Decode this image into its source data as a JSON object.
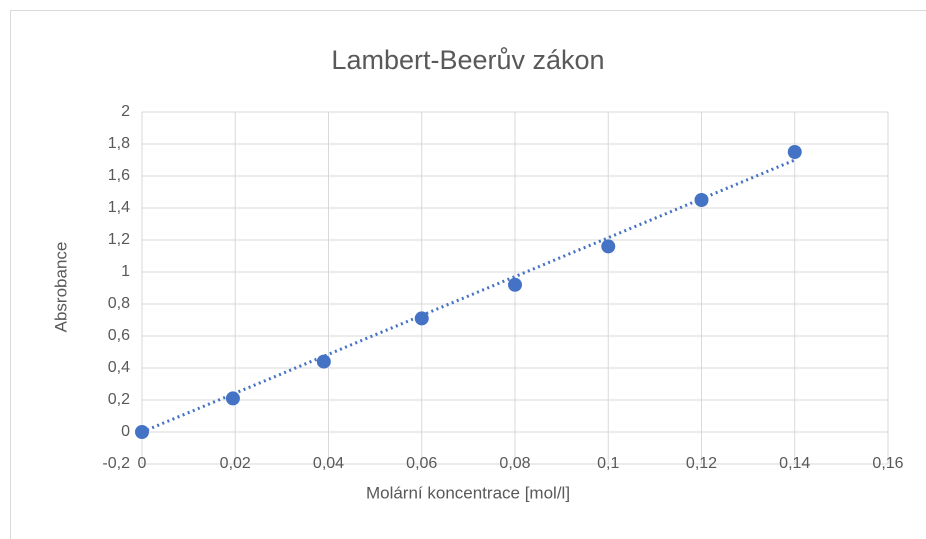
{
  "chart_data": {
    "type": "scatter",
    "title": "Lambert-Beerův zákon",
    "x_label": "Molární koncentrace [mol/l]",
    "y_label": "Absrobance",
    "series": [
      {
        "color": "#4472c4",
        "x": [
          0,
          0.0195,
          0.039,
          0.06,
          0.08,
          0.1,
          0.12,
          0.14
        ],
        "values": [
          0,
          0.21,
          0.44,
          0.71,
          0.92,
          1.16,
          1.45,
          1.75
        ]
      }
    ],
    "trendline": {
      "x": [
        0,
        0.14
      ],
      "values": [
        0,
        1.7
      ],
      "color": "#4472c4"
    },
    "xlim": [
      0,
      0.16
    ],
    "xticks": [
      0,
      {
        "value": 0.02,
        "label": "0,02"
      },
      {
        "value": 0.04,
        "label": "0,04"
      },
      {
        "value": 0.06,
        "label": "0,06"
      },
      {
        "value": 0.08,
        "label": "0,08"
      },
      {
        "value": 0.1,
        "label": "0,1"
      },
      {
        "value": 0.12,
        "label": "0,12"
      },
      {
        "value": 0.14,
        "label": "0,14"
      },
      {
        "value": 0.16,
        "label": "0,16"
      }
    ],
    "ylim": [
      -0.2,
      2
    ],
    "yticks": [
      {
        "value": -0.2,
        "label": "-0,2"
      },
      0,
      {
        "value": 0.2,
        "label": "0,2"
      },
      {
        "value": 0.4,
        "label": "0,4"
      },
      {
        "value": 0.6,
        "label": "0,6"
      },
      {
        "value": 0.8,
        "label": "0,8"
      },
      1,
      {
        "value": 1.2,
        "label": "1,2"
      },
      {
        "value": 1.4,
        "label": "1,4"
      },
      {
        "value": 1.6,
        "label": "1,6"
      },
      {
        "value": 1.8,
        "label": "1,8"
      },
      2
    ],
    "grid": true
  }
}
